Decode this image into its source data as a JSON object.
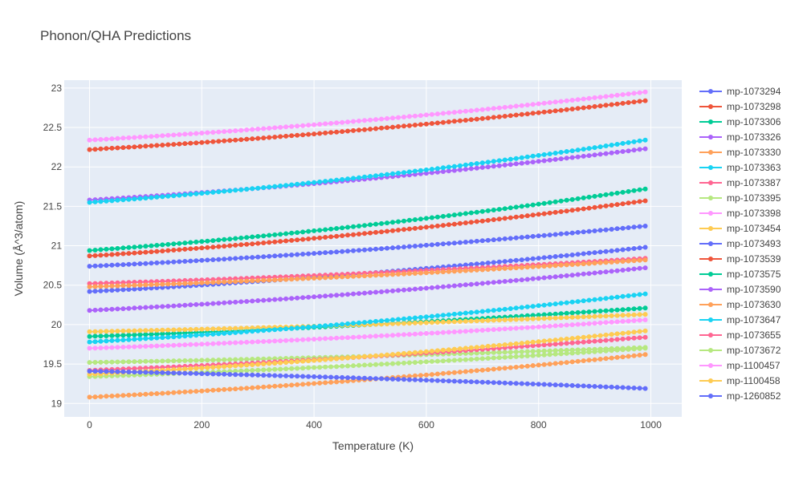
{
  "chart_data": {
    "type": "line",
    "title": "Phonon/QHA Predictions",
    "xlabel": "Temperature (K)",
    "ylabel": "Volume (Å^3/atom)",
    "xlim": [
      -45,
      1055
    ],
    "ylim": [
      18.83,
      23.1
    ],
    "xticks": [
      0,
      200,
      400,
      600,
      800,
      1000
    ],
    "yticks": [
      19,
      19.5,
      20,
      20.5,
      21,
      21.5,
      22,
      22.5,
      23
    ],
    "ytick_labels": [
      "19",
      "19.5",
      "20",
      "20.5",
      "21",
      "21.5",
      "22",
      "22.5",
      "23"
    ],
    "grid": true,
    "legend_position": "right",
    "x_range": [
      0,
      990
    ],
    "x_step": 10,
    "series": [
      {
        "name": "mp-1073294",
        "color": "#636efa",
        "v0": 20.42,
        "v1": 20.98
      },
      {
        "name": "mp-1073298",
        "color": "#EF553B",
        "v0": 22.22,
        "v1": 22.84
      },
      {
        "name": "mp-1073306",
        "color": "#00cc96",
        "v0": 19.85,
        "v1": 20.21
      },
      {
        "name": "mp-1073326",
        "color": "#ab63fa",
        "v0": 21.58,
        "v1": 22.23
      },
      {
        "name": "mp-1073330",
        "color": "#FFA15A",
        "v0": 19.08,
        "v1": 19.62
      },
      {
        "name": "mp-1073363",
        "color": "#19d3f3",
        "v0": 21.55,
        "v1": 22.34
      },
      {
        "name": "mp-1073387",
        "color": "#FF6692",
        "v0": 20.52,
        "v1": 20.84
      },
      {
        "name": "mp-1073395",
        "color": "#B6E880",
        "v0": 19.52,
        "v1": 19.71
      },
      {
        "name": "mp-1073398",
        "color": "#FF97FF",
        "v0": 22.34,
        "v1": 22.95
      },
      {
        "name": "mp-1073454",
        "color": "#FECB52",
        "v0": 19.91,
        "v1": 20.13
      },
      {
        "name": "mp-1073493",
        "color": "#636efa",
        "v0": 20.74,
        "v1": 21.25
      },
      {
        "name": "mp-1073539",
        "color": "#EF553B",
        "v0": 20.87,
        "v1": 21.57
      },
      {
        "name": "mp-1073575",
        "color": "#00cc96",
        "v0": 20.94,
        "v1": 21.72
      },
      {
        "name": "mp-1073590",
        "color": "#ab63fa",
        "v0": 20.18,
        "v1": 20.72
      },
      {
        "name": "mp-1073630",
        "color": "#FFA15A",
        "v0": 20.48,
        "v1": 20.82
      },
      {
        "name": "mp-1073647",
        "color": "#19d3f3",
        "v0": 19.78,
        "v1": 20.39
      },
      {
        "name": "mp-1073655",
        "color": "#FF6692",
        "v0": 19.42,
        "v1": 19.84
      },
      {
        "name": "mp-1073672",
        "color": "#B6E880",
        "v0": 19.34,
        "v1": 19.7
      },
      {
        "name": "mp-1100457",
        "color": "#FF97FF",
        "v0": 19.7,
        "v1": 20.06
      },
      {
        "name": "mp-1100458",
        "color": "#FECB52",
        "v0": 19.37,
        "v1": 19.92
      },
      {
        "name": "mp-1260852",
        "color": "#636efa",
        "v0": 19.41,
        "v1": 19.19
      }
    ]
  }
}
